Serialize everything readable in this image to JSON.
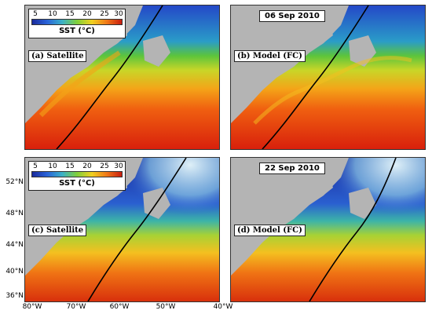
{
  "colorbar": {
    "ticks": [
      "5",
      "10",
      "15",
      "20",
      "25",
      "30"
    ],
    "label": "SST (°C)",
    "colors": [
      "#1a2a9c",
      "#2a63d8",
      "#3ab0c8",
      "#7fcf3a",
      "#f0d020",
      "#f07818",
      "#c81c10"
    ]
  },
  "panels": [
    {
      "label": "(a) Satellite"
    },
    {
      "label": "(b) Model (FC)",
      "date": "06 Sep 2010"
    },
    {
      "label": "(c) Satellite"
    },
    {
      "label": "(d) Model (FC)",
      "date": "22 Sep 2010"
    }
  ],
  "lat_labels": [
    "52°N",
    "48°N",
    "44°N",
    "40°N",
    "36°N"
  ],
  "lon_labels": [
    "80°W",
    "70°W",
    "60°W",
    "50°W",
    "40°W"
  ],
  "colors": {
    "land": "#b4b4b4",
    "warm": "#e24a10",
    "cold": "#1f3fbf",
    "track": "#000000"
  }
}
